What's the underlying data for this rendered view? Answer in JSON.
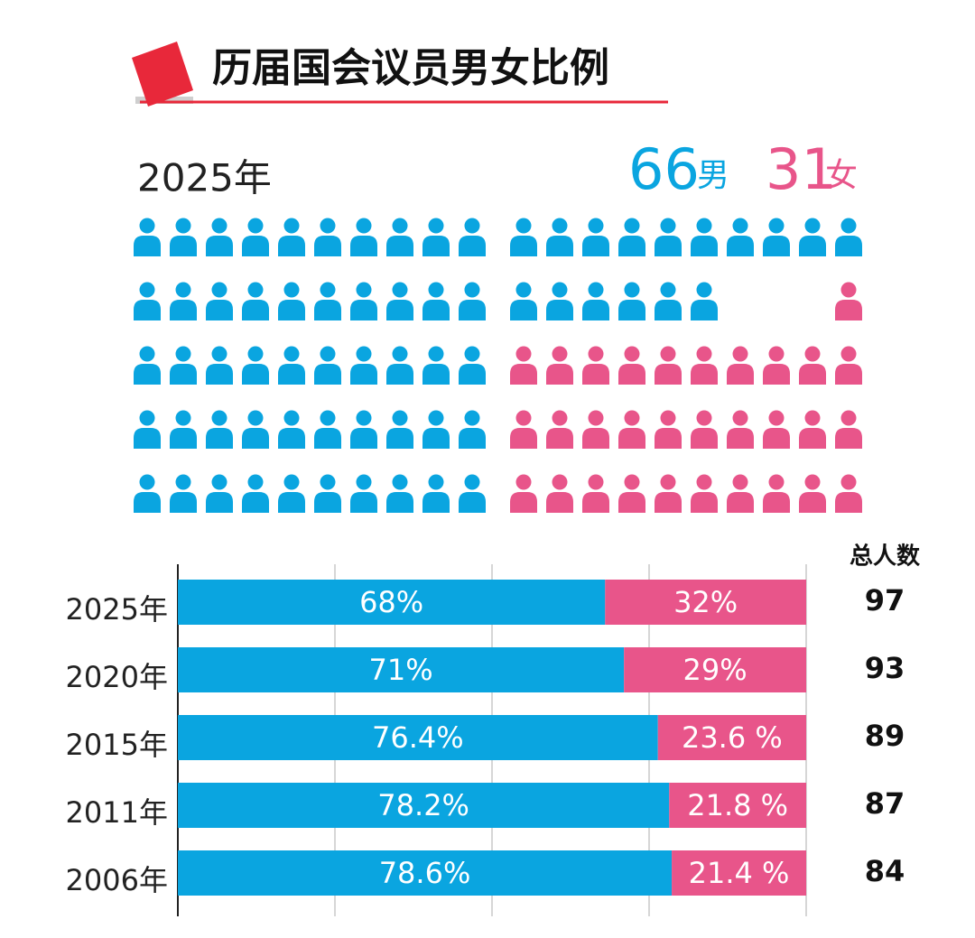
{
  "title": "历届国会议员男女比例",
  "summary": {
    "year": "2025年",
    "men": 66,
    "men_label": "男",
    "women": 31,
    "women_label": "女",
    "men_color": "#0aa5e0",
    "women_color": "#e8558a"
  },
  "chart_data": {
    "type": "bar",
    "orientation": "horizontal",
    "stacked": true,
    "categories": [
      "2025年",
      "2020年",
      "2015年",
      "2011年",
      "2006年"
    ],
    "series": [
      {
        "color": "#0aa5e0",
        "values": [
          68,
          71,
          76.4,
          78.2,
          78.6
        ],
        "value_labels": [
          "68%",
          "71%",
          "76.4%",
          "78.2%",
          "78.6%"
        ]
      },
      {
        "color": "#e8558a",
        "values": [
          32,
          29,
          23.6,
          21.8,
          21.4
        ],
        "value_labels": [
          "32%",
          "29%",
          "23.6 %",
          "21.8 %",
          "21.4 %"
        ]
      }
    ],
    "xlim": [
      0,
      100
    ],
    "xticks": [
      0,
      25,
      50,
      75,
      100
    ],
    "grid": true
  },
  "totals": {
    "header": "总人数",
    "values": [
      97,
      93,
      89,
      87,
      84
    ]
  }
}
